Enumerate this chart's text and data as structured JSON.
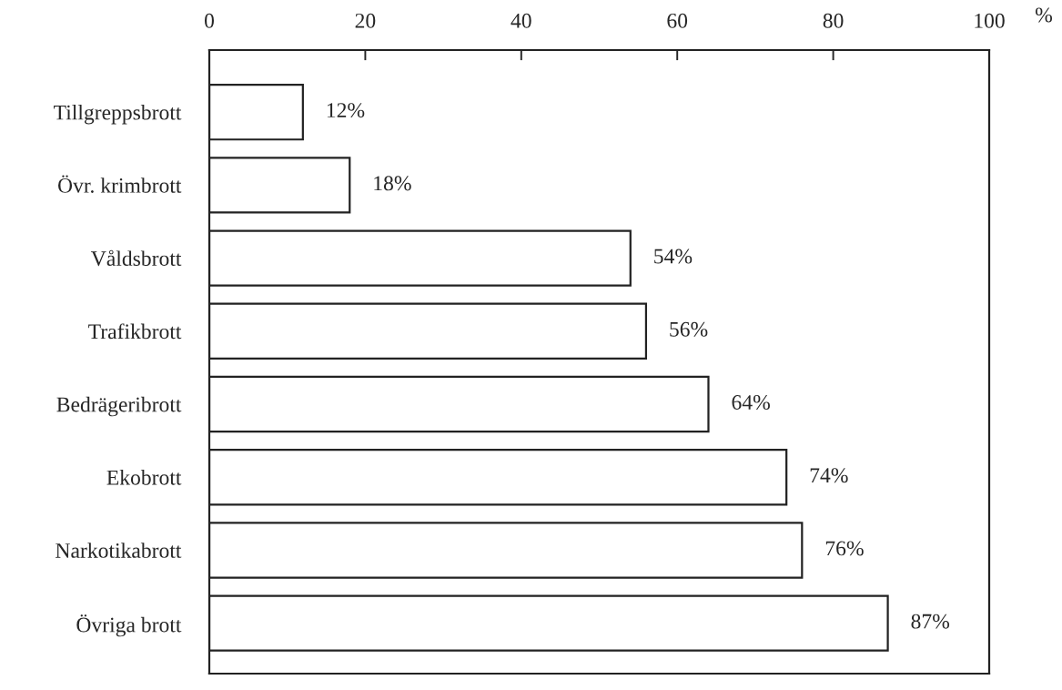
{
  "chart_data": {
    "type": "bar",
    "orientation": "horizontal",
    "xlabel": "%",
    "categories": [
      "Tillgreppsbrott",
      "Övr. krimbrott",
      "Våldsbrott",
      "Trafikbrott",
      "Bedrägeribrott",
      "Ekobrott",
      "Narkotikabrott",
      "Övriga brott"
    ],
    "values": [
      12,
      18,
      54,
      56,
      64,
      74,
      76,
      87
    ],
    "value_labels": [
      "12%",
      "18%",
      "54%",
      "56%",
      "64%",
      "74%",
      "76%",
      "87%"
    ],
    "color": "#ffffff",
    "xlim": [
      0,
      100
    ],
    "xticks": [
      0,
      20,
      40,
      60,
      80,
      100
    ],
    "grid": false,
    "legend": false
  }
}
